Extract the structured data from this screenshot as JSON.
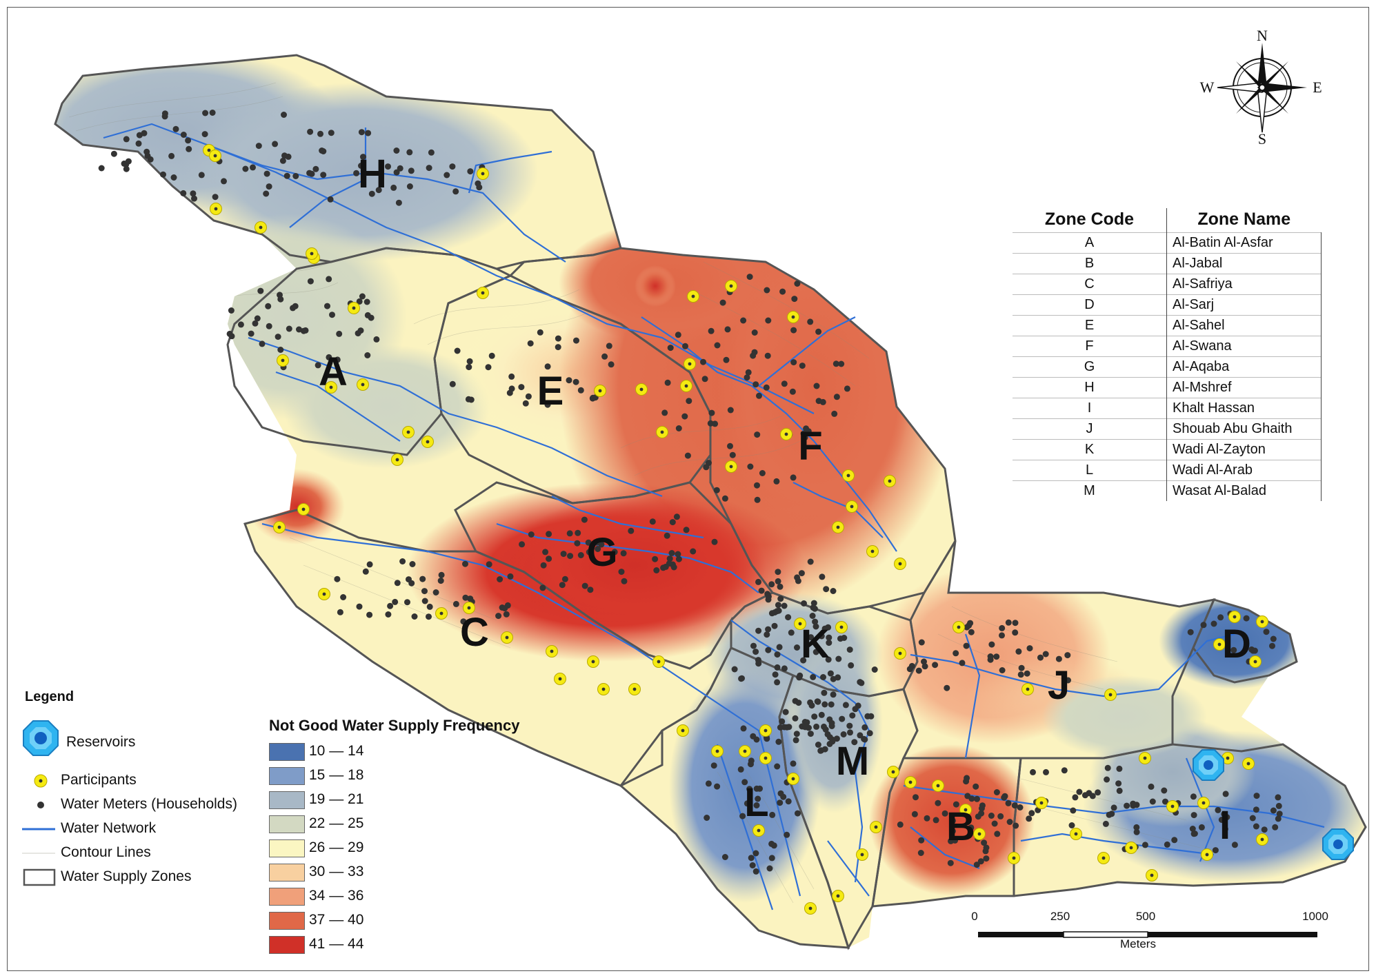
{
  "zones": [
    {
      "code": "A",
      "name": "Al-Batin Al-Asfar"
    },
    {
      "code": "B",
      "name": "Al-Jabal"
    },
    {
      "code": "C",
      "name": "Al-Safriya"
    },
    {
      "code": "D",
      "name": "Al-Sarj"
    },
    {
      "code": "E",
      "name": "Al-Sahel"
    },
    {
      "code": "F",
      "name": "Al-Swana"
    },
    {
      "code": "G",
      "name": "Al-Aqaba"
    },
    {
      "code": "H",
      "name": "Al-Mshref"
    },
    {
      "code": "I",
      "name": "Khalt Hassan"
    },
    {
      "code": "J",
      "name": "Shouab Abu Ghaith"
    },
    {
      "code": "K",
      "name": "Wadi Al-Zayton"
    },
    {
      "code": "L",
      "name": "Wadi Al-Arab"
    },
    {
      "code": "M",
      "name": "Wasat Al-Balad"
    }
  ],
  "zone_table": {
    "header_code": "Zone Code",
    "header_name": "Zone Name"
  },
  "legend": {
    "title": "Legend",
    "reservoirs": "Reservoirs",
    "participants": "Participants",
    "water_meters": "Water Meters (Households)",
    "water_network": "Water Network",
    "contour_lines": "Contour Lines",
    "water_supply_zones": "Water Supply Zones"
  },
  "frequency_legend": {
    "title": "Not Good Water Supply Frequency",
    "classes": [
      {
        "label": "10 — 14",
        "color": "#4a72b0"
      },
      {
        "label": "15 — 18",
        "color": "#7f9cc8"
      },
      {
        "label": "19 — 21",
        "color": "#a8b8c6"
      },
      {
        "label": "22 — 25",
        "color": "#d3d9c2"
      },
      {
        "label": "26 — 29",
        "color": "#fbf6c2"
      },
      {
        "label": "30 — 33",
        "color": "#f8d0a0"
      },
      {
        "label": "34 — 36",
        "color": "#f0a07a"
      },
      {
        "label": "37 — 40",
        "color": "#e06848"
      },
      {
        "label": "41 — 44",
        "color": "#d03028"
      }
    ]
  },
  "scale_bar": {
    "ticks": [
      "0",
      "250",
      "500",
      "1000"
    ],
    "unit": "Meters"
  },
  "north_arrow": {
    "n": "N",
    "s": "S",
    "e": "E",
    "w": "W"
  },
  "colors": {
    "network": "#2f6fd6",
    "meter": "#333333",
    "participant": "#f5ea12",
    "reservoir": "#2fb4f0",
    "zone_outline": "#555555"
  }
}
